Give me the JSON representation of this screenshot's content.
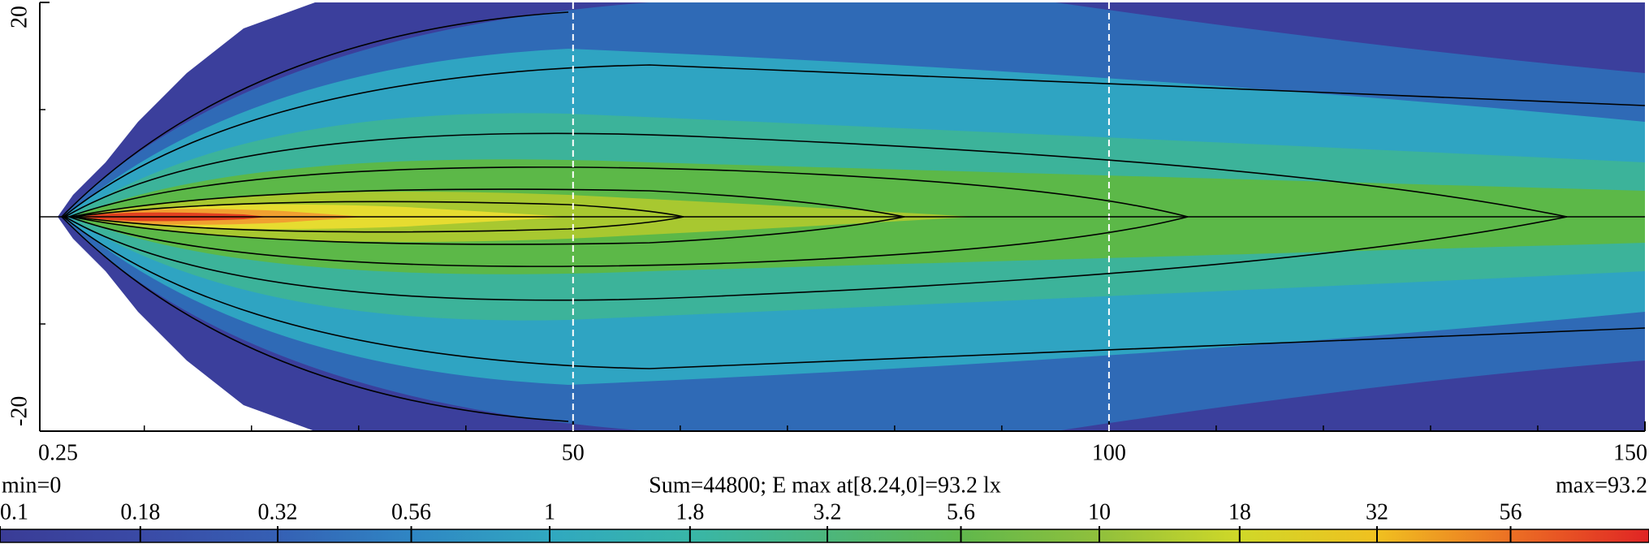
{
  "chart_data": {
    "type": "heatmap",
    "xlim": [
      0.25,
      150
    ],
    "xticks": [
      0.25,
      50,
      100,
      150
    ],
    "xminorticks": [
      10,
      20,
      30,
      40,
      60,
      70,
      80,
      90,
      110,
      120,
      130,
      140
    ],
    "ylim": [
      -20,
      20
    ],
    "yticks": [
      -20,
      20
    ],
    "yminorticks": [
      -10,
      0,
      10
    ],
    "grid": true,
    "summary_left": "min=0",
    "summary": "Sum=44800; E max at[8.24,0]=93.2 lx",
    "summary_right": "max=93.2",
    "colorbar": {
      "scale": "log",
      "lim": [
        0.1,
        100
      ],
      "ticks": [
        0.1,
        0.18,
        0.32,
        0.56,
        1,
        1.8,
        3.2,
        5.6,
        10,
        18,
        32,
        56
      ],
      "colors": [
        "#3a3c96",
        "#3a4aa6",
        "#3560b4",
        "#2f86c4",
        "#30a8c0",
        "#38b6a8",
        "#4cb67c",
        "#60b84c",
        "#90c03c",
        "#d0d828",
        "#f0c020",
        "#ec7024",
        "#e02424"
      ]
    }
  }
}
